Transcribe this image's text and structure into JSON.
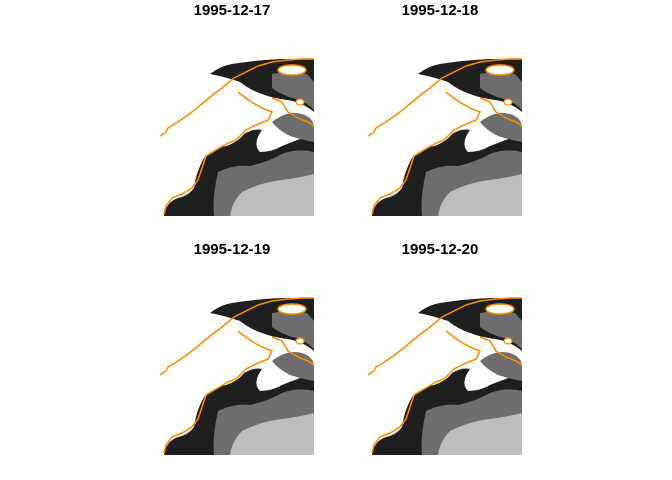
{
  "panels": [
    {
      "title": "1995-12-17"
    },
    {
      "title": "1995-12-18"
    },
    {
      "title": "1995-12-19"
    },
    {
      "title": "1995-12-20"
    }
  ],
  "colors": {
    "coastline": "#ff8c00",
    "water_dark": "#1f1f1f",
    "water_mid": "#6e6e6e",
    "water_light": "#bdbdbd",
    "land": "#ffffff"
  }
}
